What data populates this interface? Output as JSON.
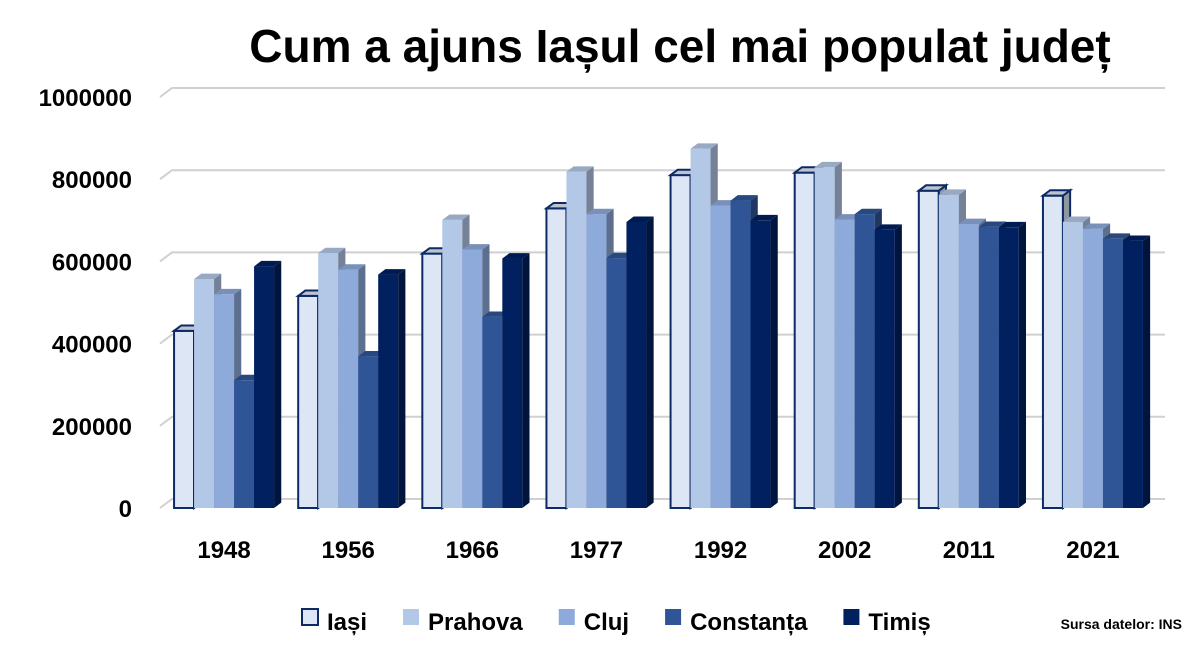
{
  "chart_data": {
    "type": "bar",
    "title": "Cum a ajuns Iașul cel mai populat județ",
    "categories": [
      "1948",
      "1956",
      "1966",
      "1977",
      "1992",
      "2002",
      "2011",
      "2021"
    ],
    "series": [
      {
        "name": "Iași",
        "color": "#dde6f4",
        "values": [
          431000,
          516000,
          619000,
          729000,
          810000,
          816000,
          772000,
          760000
        ]
      },
      {
        "name": "Prahova",
        "color": "#b3c7e6",
        "values": [
          557000,
          620000,
          701000,
          818000,
          874000,
          829000,
          762000,
          696000
        ]
      },
      {
        "name": "Cluj",
        "color": "#8eaadb",
        "values": [
          520000,
          580000,
          629000,
          715000,
          736000,
          702000,
          691000,
          679000
        ]
      },
      {
        "name": "Constanța",
        "color": "#2f5597",
        "values": [
          311000,
          369000,
          465000,
          608000,
          748000,
          715000,
          684000,
          655000
        ]
      },
      {
        "name": "Timiș",
        "color": "#002060",
        "values": [
          588000,
          568000,
          607000,
          696000,
          700000,
          677000,
          683000,
          650000
        ]
      }
    ],
    "ylim": [
      0,
      1000000
    ],
    "yticks": [
      "0",
      "200000",
      "400000",
      "600000",
      "800000",
      "1000000"
    ],
    "grid": true,
    "legend_position": "bottom",
    "source_note": "Sursa datelor: INS"
  }
}
